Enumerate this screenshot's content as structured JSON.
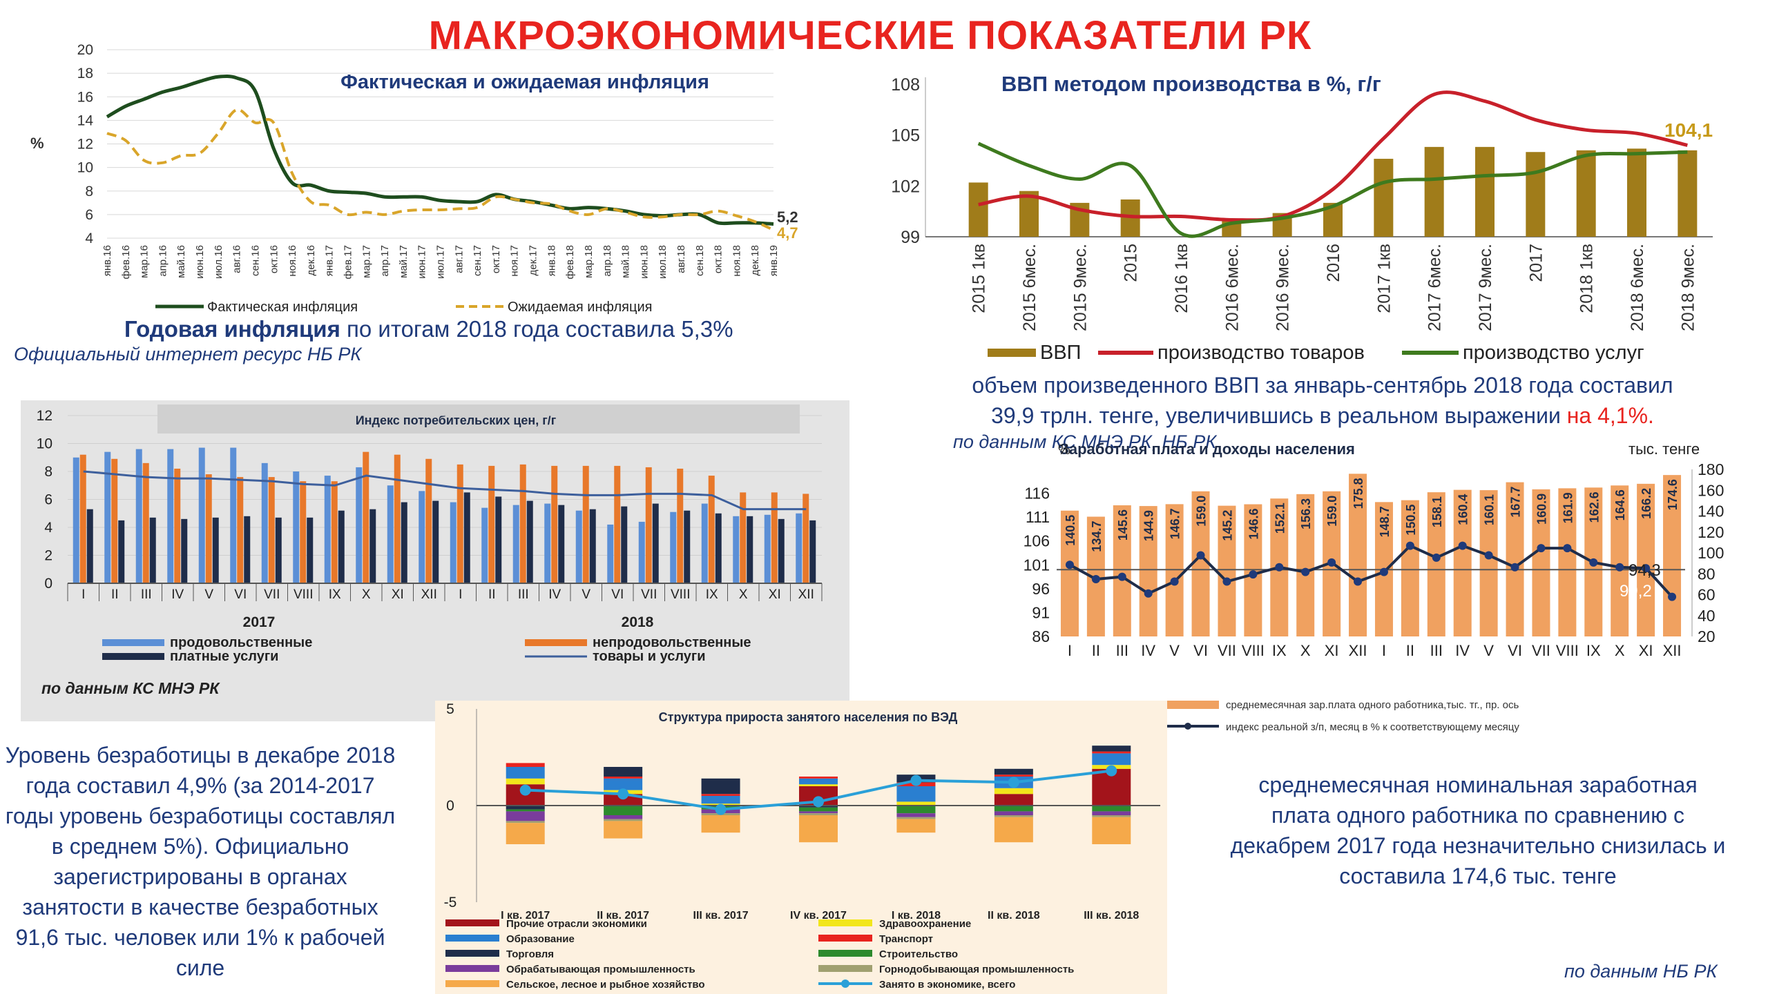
{
  "title": "МАКРОЭКОНОМИЧЕСКИЕ ПОКАЗАТЕЛИ РК",
  "inflation": {
    "chart_title": "Фактическая и ожидаемая инфляция",
    "ylabel": "%",
    "yticks": [
      "20",
      "18",
      "16",
      "14",
      "12",
      "10",
      "8",
      "6",
      "4"
    ],
    "legend_actual": "Фактическая инфляция",
    "legend_expected": "Ожидаемая инфляция",
    "end_actual": "5,2",
    "end_expected": "4,7",
    "caption_bold": "Годовая инфляция",
    "caption_rest": " по итогам 2018 года составила 5,3%",
    "source": "Официальный интернет ресурс НБ РК"
  },
  "gdp": {
    "chart_title": "ВВП методом производства в %, г/г",
    "end_label": "104,1",
    "legend_gdp": "ВВП",
    "legend_goods": "производство товаров",
    "legend_services": "производство услуг",
    "caption_1": "объем произведенного ВВП за январь-сентябрь 2018 года составил",
    "caption_2": "39,9 трлн. тенге, увеличившись в реальном выражении ",
    "caption_red": "на 4,1%.",
    "source": "по данным КС МНЭ РК, НБ РК"
  },
  "cpi": {
    "chart_title": "Индекс потребительских цен, г/г",
    "year1": "2017",
    "year2": "2018",
    "legend_food": "продовольственные",
    "legend_nonfood": "непродовольственные",
    "legend_services": "платные услуги",
    "legend_total": "товары и услуги",
    "source": "по данным КС МНЭ РК",
    "colors": {
      "food": "#5b8fd6",
      "nonfood": "#e8782a",
      "services": "#1f2d4a",
      "total": "#3d5f9c"
    }
  },
  "wages": {
    "chart_title": "Заработная плата и доходы населения",
    "left_unit": "%",
    "right_unit": "тыс. тенге",
    "last_index_a": "94,3",
    "last_index_b": "99,2",
    "legend_bar": "среднемесячная зар.плата одного работника,тыс. тг., пр. ось",
    "legend_line": "индекс реальной з/п, месяц в % к соответствующему месяцу",
    "caption": "среднемесячная номинальная заработная плата одного работника по сравнению с декабрем 2017 года незначительно снизилась и составила 174,6 тыс. тенге",
    "source": "по данным НБ РК"
  },
  "unemployment": {
    "caption": "Уровень безработицы в декабре 2018 года составил 4,9% (за 2014-2017 годы уровень безработицы составлял в среднем 5%). Официально зарегистрированы в органах занятости в качестве безработных 91,6 тыс. человек или 1% к рабочей силе"
  },
  "employment": {
    "chart_title": "Структура прироста занятого населения по ВЭД"
  },
  "chart_data": [
    {
      "type": "line",
      "title": "Фактическая и ожидаемая инфляция",
      "ylabel": "%",
      "ylim": [
        4,
        20
      ],
      "x": [
        "янв.16",
        "фев.16",
        "мар.16",
        "апр.16",
        "май.16",
        "июн.16",
        "июл.16",
        "авг.16",
        "сен.16",
        "окт.16",
        "ноя.16",
        "дек.16",
        "янв.17",
        "фев.17",
        "мар.17",
        "апр.17",
        "май.17",
        "июн.17",
        "июл.17",
        "авг.17",
        "сен.17",
        "окт.17",
        "ноя.17",
        "дек.17",
        "янв.18",
        "фев.18",
        "мар.18",
        "апр.18",
        "май.18",
        "июн.18",
        "июл.18",
        "авг.18",
        "сен.18",
        "окт.18",
        "ноя.18",
        "дек.18",
        "янв.19"
      ],
      "series": [
        {
          "name": "Фактическая инфляция",
          "color": "#1e4d1e",
          "dash": false,
          "values": [
            14.3,
            15.2,
            15.8,
            16.4,
            16.8,
            17.3,
            17.7,
            17.6,
            16.5,
            11.6,
            8.7,
            8.5,
            8.0,
            7.9,
            7.8,
            7.5,
            7.5,
            7.5,
            7.2,
            7.1,
            7.1,
            7.7,
            7.3,
            7.1,
            6.8,
            6.5,
            6.6,
            6.5,
            6.3,
            6.0,
            5.9,
            6.0,
            6.0,
            5.3,
            5.3,
            5.3,
            5.2
          ]
        },
        {
          "name": "Ожидаемая инфляция",
          "color": "#d9a52a",
          "dash": true,
          "values": [
            12.9,
            12.3,
            10.6,
            10.4,
            11.0,
            11.2,
            12.9,
            14.9,
            13.8,
            13.8,
            9.5,
            7.1,
            6.8,
            6.0,
            6.2,
            6.0,
            6.3,
            6.4,
            6.4,
            6.5,
            6.6,
            7.5,
            7.3,
            7.0,
            6.9,
            6.3,
            6.0,
            6.5,
            6.2,
            5.8,
            5.8,
            6.0,
            6.0,
            6.3,
            5.9,
            5.4,
            4.7
          ]
        }
      ]
    },
    {
      "type": "bar",
      "title": "ВВП методом производства в %, г/г",
      "ylim": [
        99,
        108
      ],
      "categories": [
        "2015 1кв",
        "2015 6мес.",
        "2015 9мес.",
        "2015",
        "2016 1кв",
        "2016 6мес.",
        "2016 9мес.",
        "2016",
        "2017 1кв",
        "2017 6мес.",
        "2017 9мес.",
        "2017",
        "2018 1кв",
        "2018 6мес.",
        "2018 9мес."
      ],
      "series": [
        {
          "name": "ВВП",
          "type": "bar",
          "color": "#a07c1a",
          "values": [
            102.2,
            101.7,
            101.0,
            101.2,
            99.0,
            100.0,
            100.4,
            101.0,
            103.6,
            104.3,
            104.3,
            104.0,
            104.1,
            104.2,
            104.1
          ]
        },
        {
          "name": "производство товаров",
          "type": "line",
          "color": "#c8202a",
          "values": [
            100.9,
            101.4,
            100.6,
            100.2,
            100.2,
            100.0,
            100.2,
            101.8,
            104.8,
            107.4,
            107.0,
            105.9,
            105.3,
            105.1,
            104.4
          ]
        },
        {
          "name": "производство услуг",
          "type": "line",
          "color": "#3e7a1e",
          "values": [
            104.5,
            103.2,
            102.4,
            103.2,
            99.2,
            99.8,
            100.1,
            100.8,
            102.2,
            102.4,
            102.6,
            102.8,
            103.8,
            103.9,
            104.0
          ]
        }
      ]
    },
    {
      "type": "bar",
      "title": "Индекс потребительских цен, г/г",
      "ylim": [
        0,
        12
      ],
      "categories": [
        "I",
        "II",
        "III",
        "IV",
        "V",
        "VI",
        "VII",
        "VIII",
        "IX",
        "X",
        "XI",
        "XII",
        "I",
        "II",
        "III",
        "IV",
        "V",
        "VI",
        "VII",
        "VIII",
        "IX",
        "X",
        "XI",
        "XII"
      ],
      "series": [
        {
          "name": "продовольственные",
          "type": "bar",
          "values": [
            9.0,
            9.4,
            9.6,
            9.6,
            9.7,
            9.7,
            8.6,
            8.0,
            7.7,
            8.3,
            7.0,
            6.6,
            5.8,
            5.4,
            5.6,
            5.7,
            5.2,
            4.2,
            4.4,
            5.1,
            5.7,
            4.8,
            4.9,
            5.0
          ]
        },
        {
          "name": "непродовольственные",
          "type": "bar",
          "values": [
            9.2,
            8.9,
            8.6,
            8.2,
            7.8,
            7.6,
            7.6,
            7.3,
            7.3,
            9.4,
            9.2,
            8.9,
            8.5,
            8.4,
            8.5,
            8.4,
            8.4,
            8.4,
            8.3,
            8.2,
            7.7,
            6.5,
            6.5,
            6.4
          ]
        },
        {
          "name": "платные услуги",
          "type": "bar",
          "values": [
            5.3,
            4.5,
            4.7,
            4.6,
            4.7,
            4.8,
            4.7,
            4.7,
            5.2,
            5.3,
            5.8,
            5.9,
            6.5,
            6.2,
            5.9,
            5.6,
            5.3,
            5.5,
            5.7,
            5.2,
            5.0,
            4.8,
            4.6,
            4.5
          ]
        },
        {
          "name": "товары и услуги",
          "type": "line",
          "values": [
            8.0,
            7.8,
            7.6,
            7.5,
            7.5,
            7.4,
            7.3,
            7.1,
            7.0,
            7.7,
            7.4,
            7.1,
            6.8,
            6.7,
            6.6,
            6.4,
            6.3,
            6.3,
            6.4,
            6.4,
            6.3,
            5.3,
            5.3,
            5.3
          ]
        }
      ]
    },
    {
      "type": "bar",
      "title": "Заработная плата и доходы населения",
      "ylim": [
        86,
        121
      ],
      "y2lim": [
        20,
        180
      ],
      "categories": [
        "I",
        "II",
        "III",
        "IV",
        "V",
        "VI",
        "VII",
        "VIII",
        "IX",
        "X",
        "XI",
        "XII",
        "I",
        "II",
        "III",
        "IV",
        "V",
        "VI",
        "VII",
        "VIII",
        "IX",
        "X",
        "XI",
        "XII"
      ],
      "series": [
        {
          "name": "среднемесячная зар.плата одного работника,тыс. тг., пр. ось",
          "type": "bar",
          "axis": "right",
          "color": "#f0a160",
          "values": [
            140.5,
            134.7,
            145.6,
            144.9,
            146.7,
            159.0,
            145.2,
            146.6,
            152.1,
            156.3,
            159.0,
            175.8,
            148.7,
            150.5,
            158.1,
            160.4,
            160.1,
            167.7,
            160.9,
            161.9,
            162.6,
            164.6,
            166.2,
            174.6
          ]
        },
        {
          "name": "индекс реальной з/п, месяц в % к соответствующему месяцу",
          "type": "line",
          "axis": "left",
          "color": "#1f3a7a",
          "values": [
            101.0,
            98.0,
            98.5,
            95.0,
            97.5,
            103.0,
            97.5,
            99.0,
            100.5,
            99.5,
            101.5,
            97.5,
            99.5,
            105.0,
            102.5,
            105.0,
            103.0,
            100.5,
            104.5,
            104.5,
            101.5,
            100.5,
            100.3,
            94.3
          ]
        }
      ]
    },
    {
      "type": "bar",
      "title": "Структура прироста занятого населения по ВЭД",
      "ylim": [
        -5,
        5
      ],
      "categories": [
        "I кв. 2017",
        "II кв. 2017",
        "III кв. 2017",
        "IV кв. 2017",
        "I кв. 2018",
        "II кв. 2018",
        "III кв. 2018"
      ],
      "series": [
        {
          "name": "Прочие отрасли экономики",
          "type": "bar",
          "color": "#a3141b",
          "values": [
            1.1,
            0.6,
            0.0,
            1.0,
            0.0,
            0.6,
            1.9
          ]
        },
        {
          "name": "Здравоохранение",
          "type": "bar",
          "color": "#f2e61b",
          "values": [
            0.3,
            0.2,
            0.1,
            0.1,
            0.2,
            0.3,
            0.2
          ]
        },
        {
          "name": "Образование",
          "type": "bar",
          "color": "#2a7fd0",
          "values": [
            0.6,
            0.6,
            0.4,
            0.3,
            0.8,
            0.6,
            0.6
          ]
        },
        {
          "name": "Транспорт",
          "type": "bar",
          "color": "#e8241f",
          "values": [
            0.2,
            0.1,
            0.1,
            0.1,
            0.2,
            0.1,
            0.1
          ]
        },
        {
          "name": "Торговля",
          "type": "bar",
          "color": "#1f2d4a",
          "values": [
            -0.2,
            0.5,
            0.8,
            -0.1,
            0.4,
            0.3,
            0.3
          ]
        },
        {
          "name": "Строительство",
          "type": "bar",
          "color": "#2d8a2d",
          "values": [
            -0.1,
            -0.5,
            -0.2,
            -0.2,
            -0.4,
            -0.3,
            -0.3
          ]
        },
        {
          "name": "Обрабатывающая промышленность",
          "type": "bar",
          "color": "#7a3c9c",
          "values": [
            -0.5,
            -0.2,
            -0.2,
            -0.1,
            -0.2,
            -0.2,
            -0.2
          ]
        },
        {
          "name": "Горнодобывающая промышленность",
          "type": "bar",
          "color": "#a0a070",
          "values": [
            -0.1,
            -0.1,
            -0.1,
            -0.1,
            -0.1,
            -0.1,
            -0.1
          ]
        },
        {
          "name": "Сельское, лесное и рыбное хозяйство",
          "type": "bar",
          "color": "#f5a94a",
          "values": [
            -1.1,
            -0.9,
            -0.9,
            -1.4,
            -0.7,
            -1.3,
            -1.4
          ]
        },
        {
          "name": "Занято в экономике, всего",
          "type": "line",
          "color": "#2aa0d8",
          "values": [
            0.8,
            0.6,
            -0.2,
            0.2,
            1.3,
            1.2,
            1.8
          ]
        }
      ]
    }
  ]
}
